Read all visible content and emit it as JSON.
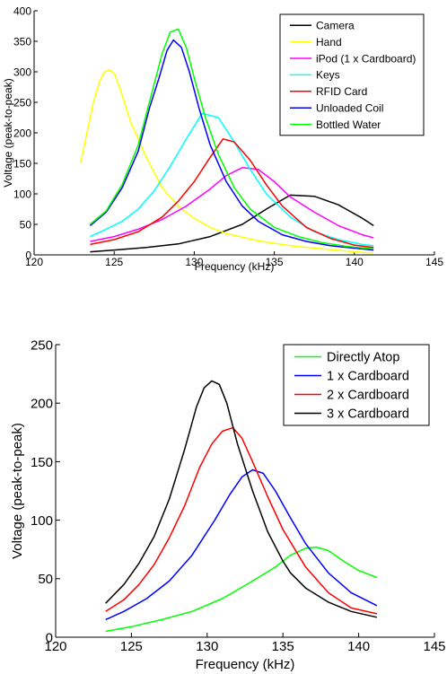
{
  "chart_data": [
    {
      "type": "line",
      "title": "",
      "xlabel": "Frequency (kHz)",
      "ylabel": "Voltage (peak-to-peak)",
      "xlim": [
        120,
        145
      ],
      "ylim": [
        0,
        400
      ],
      "xticks": [
        120,
        125,
        130,
        135,
        140,
        145
      ],
      "yticks": [
        0,
        50,
        100,
        150,
        200,
        250,
        300,
        350,
        400
      ],
      "grid": false,
      "legend_position": "top-right",
      "series": [
        {
          "name": "Camera",
          "color": "#000000",
          "x": [
            123.5,
            125,
            127,
            129,
            131,
            133,
            134.5,
            136,
            137.5,
            139,
            140.5,
            141.2
          ],
          "y": [
            5,
            8,
            12,
            18,
            30,
            50,
            75,
            98,
            96,
            82,
            60,
            48
          ]
        },
        {
          "name": "Hand",
          "color": "#ffff00",
          "x": [
            122.9,
            123.3,
            123.7,
            124.1,
            124.4,
            124.7,
            125.0,
            125.4,
            126,
            127,
            128,
            129,
            130,
            131,
            132,
            134,
            136,
            138,
            140,
            141.2
          ],
          "y": [
            150,
            200,
            250,
            285,
            300,
            303,
            298,
            270,
            220,
            160,
            110,
            80,
            60,
            45,
            35,
            23,
            15,
            10,
            5,
            3
          ]
        },
        {
          "name": "iPod (1 x Cardboard)",
          "color": "#ff00ff",
          "x": [
            123.5,
            125,
            126.5,
            128,
            129.5,
            131,
            132,
            133,
            134,
            135,
            136,
            137.5,
            139,
            140.5,
            141.2
          ],
          "y": [
            22,
            30,
            42,
            58,
            80,
            108,
            130,
            143,
            140,
            120,
            95,
            70,
            48,
            33,
            28
          ]
        },
        {
          "name": "Keys",
          "color": "#00ffff",
          "x": [
            123.5,
            124.5,
            125.5,
            126.5,
            127.5,
            128.5,
            129.5,
            130.5,
            131.5,
            132.5,
            133.5,
            134.5,
            136,
            137.5,
            139,
            140.5,
            141.2
          ],
          "y": [
            30,
            42,
            55,
            75,
            105,
            145,
            190,
            232,
            225,
            185,
            140,
            100,
            62,
            38,
            25,
            17,
            15
          ]
        },
        {
          "name": "RFID Card",
          "color": "#ff0000",
          "x": [
            123.5,
            125,
            126.5,
            128,
            129,
            130,
            131,
            131.8,
            132.5,
            133.5,
            134.5,
            135.5,
            137,
            138.5,
            140,
            141.2
          ],
          "y": [
            17,
            25,
            38,
            62,
            88,
            120,
            160,
            190,
            185,
            155,
            115,
            80,
            45,
            27,
            16,
            12
          ]
        },
        {
          "name": "Unloaded Coil",
          "color": "#0000ff",
          "x": [
            123.5,
            124.5,
            125.5,
            126.5,
            127.2,
            127.8,
            128.3,
            128.7,
            129.2,
            129.7,
            130.3,
            131,
            132,
            133,
            134,
            135.5,
            137,
            138.5,
            140,
            141.2
          ],
          "y": [
            48,
            70,
            110,
            170,
            240,
            290,
            335,
            352,
            340,
            300,
            240,
            180,
            120,
            80,
            55,
            33,
            22,
            15,
            11,
            8
          ]
        },
        {
          "name": "Bottled Water",
          "color": "#00ff00",
          "x": [
            123.5,
            124.5,
            125.5,
            126.5,
            127.3,
            128,
            128.5,
            129,
            129.5,
            130,
            130.7,
            131.5,
            132.5,
            133.5,
            135,
            136.5,
            138,
            139.5,
            141.2
          ],
          "y": [
            50,
            72,
            115,
            180,
            260,
            330,
            365,
            370,
            340,
            290,
            225,
            165,
            110,
            75,
            45,
            30,
            20,
            14,
            10
          ]
        }
      ]
    },
    {
      "type": "line",
      "title": "",
      "xlabel": "Frequency (kHz)",
      "ylabel": "Voltage (peak-to-peak)",
      "xlim": [
        120,
        145
      ],
      "ylim": [
        0,
        250
      ],
      "xticks": [
        120,
        125,
        130,
        135,
        140,
        145
      ],
      "yticks": [
        0,
        50,
        100,
        150,
        200,
        250
      ],
      "grid": false,
      "legend_position": "top-right",
      "series": [
        {
          "name": "Directly Atop",
          "color": "#00ff00",
          "x": [
            123.3,
            125,
            127,
            129,
            131,
            133,
            134.5,
            135.5,
            136.5,
            137.2,
            138,
            139,
            140,
            141.2
          ],
          "y": [
            5,
            9,
            15,
            22,
            33,
            48,
            60,
            70,
            76,
            77,
            74,
            65,
            57,
            51
          ]
        },
        {
          "name": "1 x Cardboard",
          "color": "#0000ff",
          "x": [
            123.3,
            124.5,
            126,
            127.5,
            129,
            130.5,
            131.5,
            132.3,
            133,
            133.7,
            134.5,
            135.5,
            136.5,
            138,
            139.5,
            141.2
          ],
          "y": [
            15,
            22,
            33,
            48,
            70,
            100,
            122,
            137,
            143,
            140,
            125,
            102,
            80,
            55,
            38,
            27
          ]
        },
        {
          "name": "2 x Cardboard",
          "color": "#ff0000",
          "x": [
            123.3,
            124.5,
            125.5,
            126.5,
            127.5,
            128.5,
            129.5,
            130.3,
            131,
            131.7,
            132.3,
            133,
            134,
            135,
            136.5,
            138,
            139.5,
            141.2
          ],
          "y": [
            22,
            32,
            45,
            62,
            85,
            112,
            145,
            165,
            176,
            179,
            170,
            150,
            120,
            92,
            60,
            38,
            25,
            20
          ]
        },
        {
          "name": "3 x Cardboard",
          "color": "#000000",
          "x": [
            123.3,
            124.5,
            125.5,
            126.5,
            127.5,
            128.5,
            129.3,
            129.8,
            130.3,
            130.8,
            131.3,
            132,
            133,
            134,
            135,
            135.5,
            136.5,
            138,
            139.5,
            141.2
          ],
          "y": [
            29,
            45,
            63,
            86,
            118,
            160,
            197,
            213,
            219,
            216,
            200,
            165,
            125,
            90,
            65,
            55,
            42,
            30,
            22,
            17
          ]
        }
      ]
    }
  ]
}
